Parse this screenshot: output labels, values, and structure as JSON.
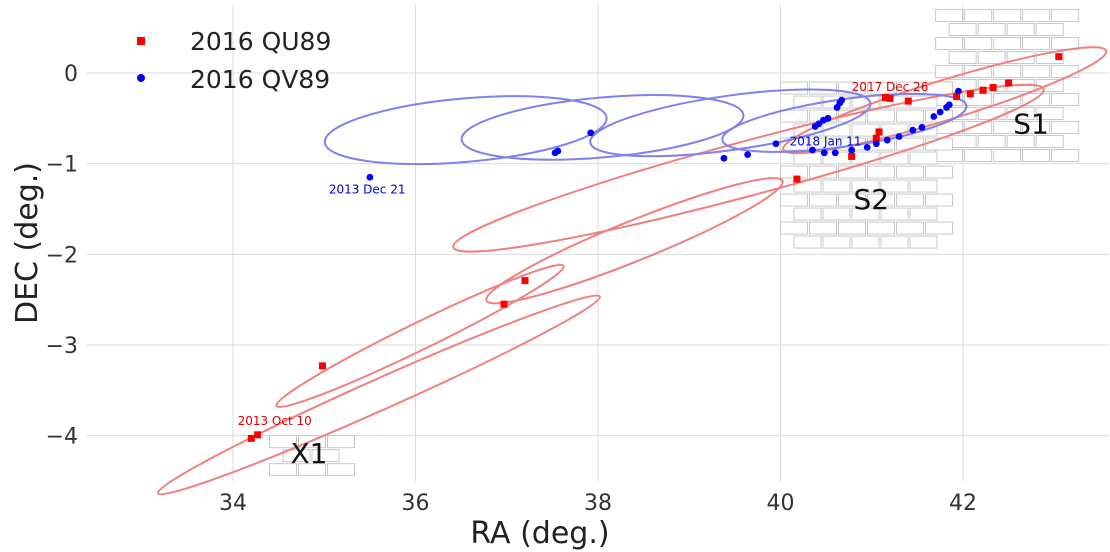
{
  "chart_data": {
    "type": "scatter",
    "xlabel": "RA (deg.)",
    "ylabel": "DEC (deg.)",
    "xlim": [
      32.4,
      43.6
    ],
    "ylim": [
      -4.5,
      0.75
    ],
    "xticks": [
      34,
      36,
      38,
      40,
      42
    ],
    "yticks": [
      0,
      -1,
      -2,
      -3,
      -4
    ],
    "xtick_labels": [
      "34",
      "36",
      "38",
      "40",
      "42"
    ],
    "ytick_labels": [
      "0",
      "−1",
      "−2",
      "−3",
      "−4"
    ],
    "grid": true,
    "legend_position": "top-left",
    "series": [
      {
        "name": "2016 QU89",
        "color": "#ff0000",
        "line_color": "#f08080",
        "marker": "square",
        "x": [
          34.2,
          34.27,
          34.98,
          36.97,
          37.2,
          40.18,
          40.78,
          41.05,
          41.08,
          41.15,
          41.2,
          41.4,
          41.93,
          42.08,
          42.22,
          42.33,
          42.5,
          43.05
        ],
        "y": [
          -4.03,
          -3.99,
          -3.23,
          -2.55,
          -2.29,
          -1.17,
          -0.92,
          -0.72,
          -0.65,
          -0.27,
          -0.28,
          -0.31,
          -0.26,
          -0.23,
          -0.19,
          -0.16,
          -0.11,
          0.18
        ]
      },
      {
        "name": "2016 QV89",
        "color": "#0000ff",
        "line_color": "#8080f0",
        "marker": "circle",
        "x": [
          35.5,
          37.53,
          37.56,
          37.92,
          39.38,
          39.64,
          39.95,
          40.35,
          40.38,
          40.42,
          40.47,
          40.52,
          40.62,
          40.65,
          40.67,
          40.48,
          40.6,
          40.78,
          40.95,
          41.05,
          41.17,
          41.3,
          41.45,
          41.55,
          41.68,
          41.75,
          41.82,
          41.85,
          41.95
        ],
        "y": [
          -1.15,
          -0.88,
          -0.86,
          -0.66,
          -0.94,
          -0.9,
          -0.78,
          -0.85,
          -0.59,
          -0.56,
          -0.52,
          -0.5,
          -0.38,
          -0.33,
          -0.3,
          -0.88,
          -0.88,
          -0.85,
          -0.82,
          -0.78,
          -0.74,
          -0.7,
          -0.63,
          -0.6,
          -0.48,
          -0.43,
          -0.38,
          -0.35,
          -0.2
        ]
      }
    ],
    "orbits": [
      {
        "series": "2016 QU89",
        "loops": [
          {
            "cx": 35.6,
            "cy": -3.55,
            "rx": 2.65,
            "ry": 0.17,
            "angle": 24
          },
          {
            "cx": 36.05,
            "cy": -2.9,
            "rx": 1.75,
            "ry": 0.15,
            "angle": 26
          },
          {
            "cx": 38.4,
            "cy": -1.85,
            "rx": 1.75,
            "ry": 0.22,
            "angle": 22
          },
          {
            "cx": 39.65,
            "cy": -1.05,
            "rx": 3.35,
            "ry": 0.3,
            "angle": 15
          },
          {
            "cx": 41.8,
            "cy": -0.3,
            "rx": 1.85,
            "ry": 0.22,
            "angle": 17
          }
        ]
      },
      {
        "series": "2016 QV89",
        "loops": [
          {
            "cx": 36.55,
            "cy": -0.63,
            "rx": 1.55,
            "ry": 0.35,
            "angle": 5
          },
          {
            "cx": 38.05,
            "cy": -0.6,
            "rx": 1.55,
            "ry": 0.33,
            "angle": 5
          },
          {
            "cx": 39.45,
            "cy": -0.55,
            "rx": 1.55,
            "ry": 0.3,
            "angle": 8
          },
          {
            "cx": 40.7,
            "cy": -0.55,
            "rx": 1.35,
            "ry": 0.26,
            "angle": 8
          }
        ]
      }
    ],
    "fields": [
      {
        "ra0": 34.4,
        "dec0": -4.0,
        "ra1": 35.4,
        "dec1": -4.45,
        "label": "X1"
      },
      {
        "ra0": 41.7,
        "dec0": 0.7,
        "ra1": 43.3,
        "dec1": -1.0,
        "label": "S1"
      },
      {
        "ra0": 40.0,
        "dec0": -0.1,
        "ra1": 41.9,
        "dec1": -1.95,
        "label": "S2"
      }
    ],
    "annotations": [
      {
        "text": "2013 Oct 10",
        "x": 34.05,
        "y": -3.88,
        "series": "2016 QU89"
      },
      {
        "text": "2017 Dec 26",
        "x": 40.78,
        "y": -0.2,
        "series": "2016 QU89"
      },
      {
        "text": "2013 Dec 21",
        "x": 35.05,
        "y": -1.33,
        "series": "2016 QV89"
      },
      {
        "text": "2018 Jan 11",
        "x": 40.1,
        "y": -0.8,
        "series": "2016 QV89"
      }
    ],
    "region_labels": [
      {
        "text": "X1",
        "x": 34.63,
        "y": -4.3
      },
      {
        "text": "S1",
        "x": 42.55,
        "y": -0.67
      },
      {
        "text": "S2",
        "x": 40.8,
        "y": -1.5
      }
    ]
  }
}
